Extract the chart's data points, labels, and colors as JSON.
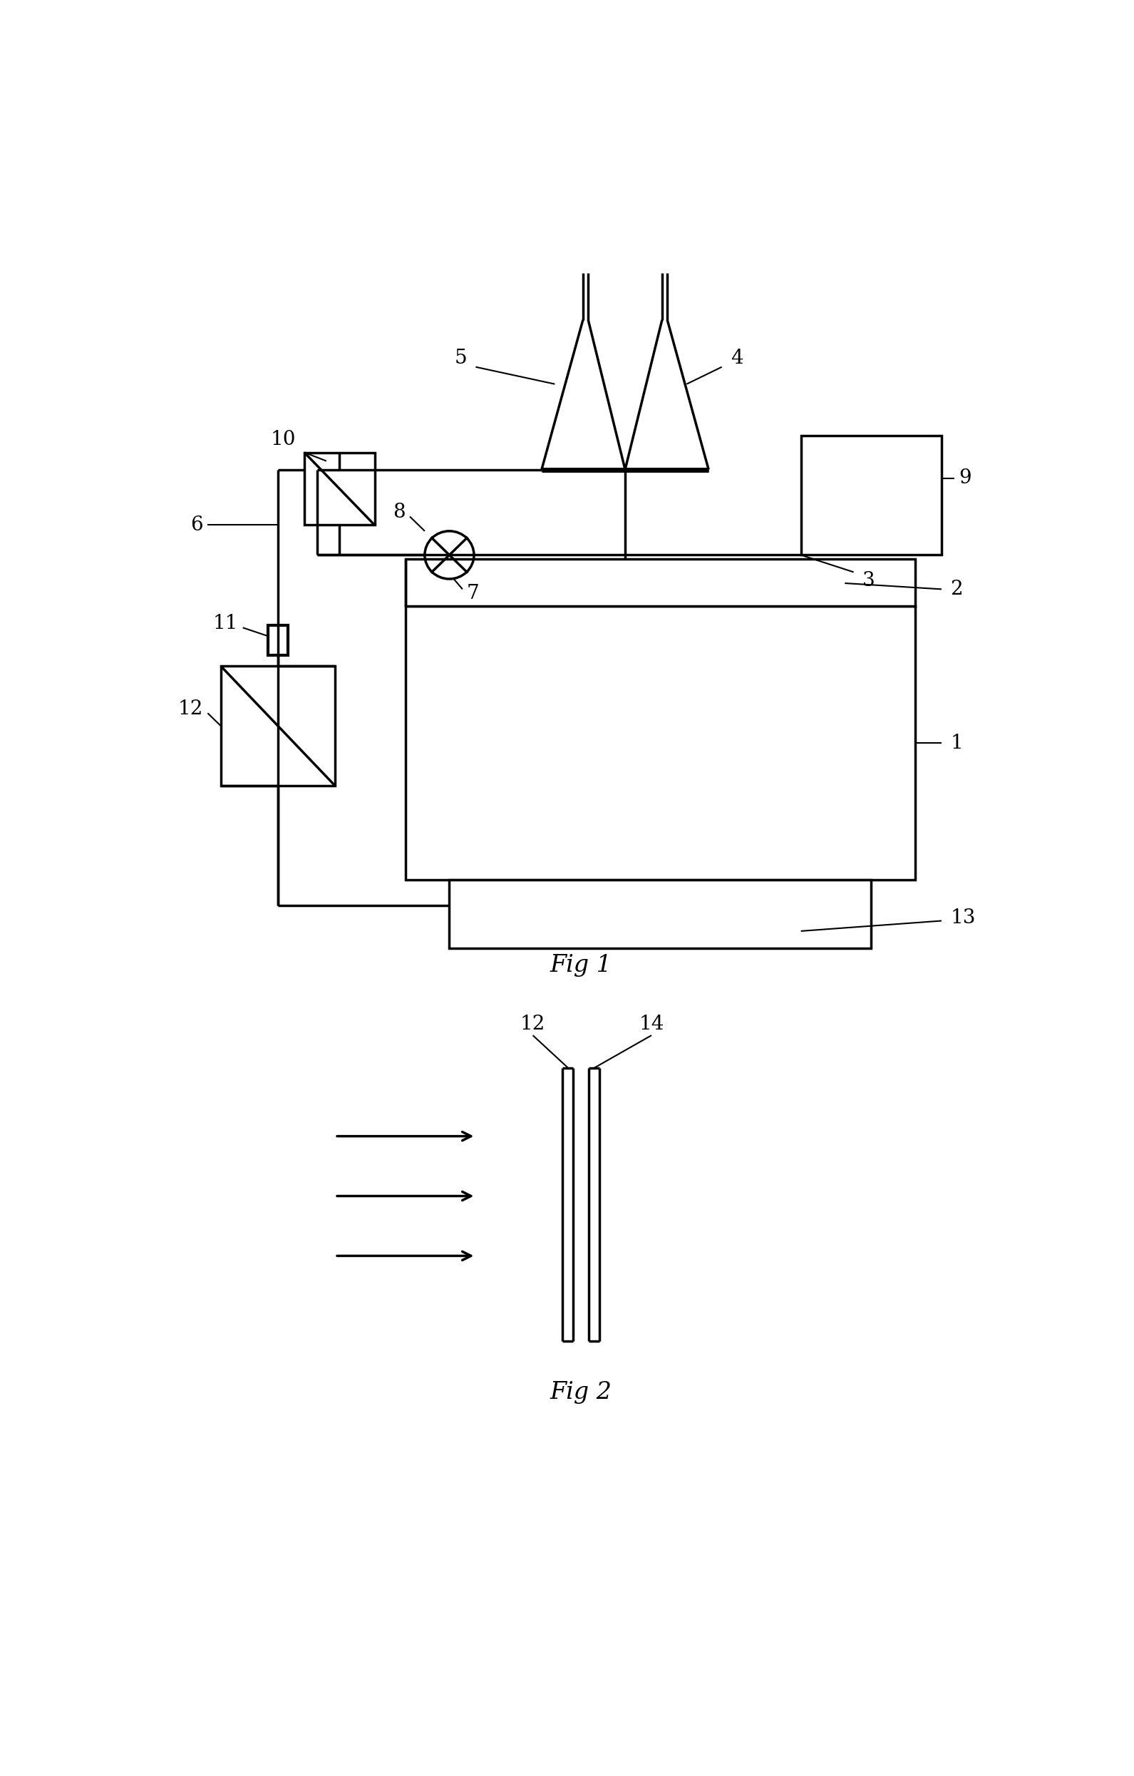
{
  "fig1_label": "Fig 1",
  "fig2_label": "Fig 2",
  "background_color": "#ffffff",
  "line_color": "#000000",
  "line_width": 2.5,
  "label_fontsize": 20,
  "caption_fontsize": 24
}
